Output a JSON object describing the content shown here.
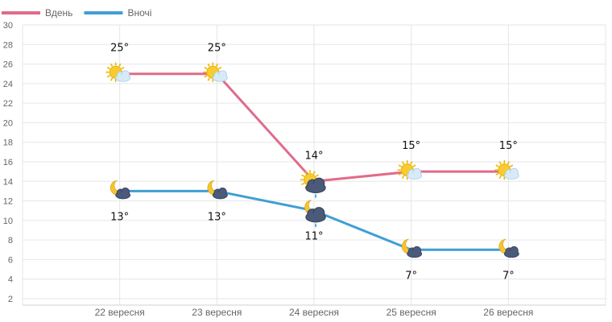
{
  "chart_data": {
    "type": "line",
    "categories": [
      "22 вересня",
      "23 вересня",
      "24 вересня",
      "25 вересня",
      "26 вересня"
    ],
    "series": [
      {
        "name": "Вдень",
        "color": "#e06b8a",
        "values": [
          25,
          25,
          14,
          15,
          15
        ],
        "labels": [
          "25°",
          "25°",
          "14°",
          "15°",
          "15°"
        ],
        "icons": [
          "sun-cloud-icon",
          "sun-cloud-icon",
          "sun-rain-cloud-icon",
          "sun-cloud-icon",
          "sun-cloud-icon"
        ]
      },
      {
        "name": "Вночі",
        "color": "#3f9fd4",
        "values": [
          13,
          13,
          11,
          7,
          7
        ],
        "labels": [
          "13°",
          "13°",
          "11°",
          "7°",
          "7°"
        ],
        "icons": [
          "moon-cloud-icon",
          "moon-cloud-icon",
          "moon-rain-cloud-icon",
          "moon-cloud-icon",
          "moon-cloud-icon"
        ]
      }
    ],
    "ylim": [
      2,
      30
    ],
    "yticks": [
      2,
      4,
      6,
      8,
      10,
      12,
      14,
      16,
      18,
      20,
      22,
      24,
      26,
      28,
      30
    ],
    "grid": true,
    "legend": "top-left"
  }
}
